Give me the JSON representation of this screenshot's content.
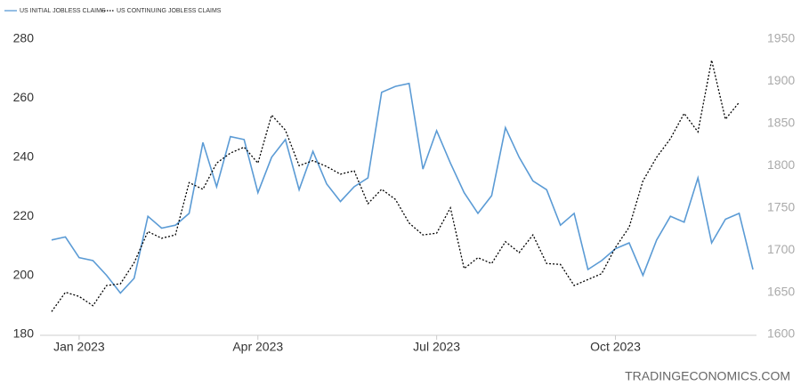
{
  "chart_data": {
    "type": "line",
    "categories": [
      null,
      null,
      "Jan 2023",
      null,
      null,
      null,
      null,
      null,
      null,
      null,
      null,
      null,
      null,
      null,
      null,
      "Apr 2023",
      null,
      null,
      null,
      null,
      null,
      null,
      null,
      null,
      null,
      null,
      null,
      null,
      "Jul 2023",
      null,
      null,
      null,
      null,
      null,
      null,
      null,
      null,
      null,
      null,
      null,
      null,
      "Oct 2023",
      null,
      null,
      null,
      null,
      null,
      null,
      null,
      null,
      null,
      null
    ],
    "series": [
      {
        "name": "US INITIAL JOBLESS CLAIMS",
        "color": "#5b9bd5",
        "axis": "y",
        "values": [
          212,
          213,
          206,
          205,
          200,
          194,
          199,
          220,
          216,
          217,
          221,
          245,
          230,
          247,
          246,
          228,
          240,
          246,
          229,
          242,
          231,
          225,
          230,
          233,
          262,
          264,
          265,
          236,
          249,
          238,
          228,
          221,
          227,
          250,
          240,
          232,
          229,
          217,
          221,
          202,
          205,
          209,
          211,
          200,
          212,
          220,
          218,
          233,
          211,
          219,
          221,
          202
        ]
      },
      {
        "name": "US CONTINUING JOBLESS CLAIMS",
        "color": "#000000",
        "axis": "y2",
        "values": [
          1627,
          1650,
          1645,
          1634,
          1658,
          1660,
          1685,
          1722,
          1714,
          1718,
          1780,
          1772,
          1803,
          1815,
          1822,
          1803,
          1860,
          1842,
          1800,
          1806,
          1799,
          1790,
          1794,
          1755,
          1772,
          1760,
          1732,
          1718,
          1720,
          1750,
          1678,
          1691,
          1684,
          1710,
          1697,
          1718,
          1684,
          1683,
          1658,
          1665,
          1672,
          1703,
          1727,
          1782,
          1810,
          1832,
          1862,
          1840,
          1925,
          1855,
          1875,
          null
        ]
      }
    ],
    "ylim": [
      180,
      280
    ],
    "yticks": [
      180,
      200,
      220,
      240,
      260,
      280
    ],
    "y2lim": [
      1600,
      1950
    ],
    "y2ticks": [
      1600,
      1650,
      1700,
      1750,
      1800,
      1850,
      1900,
      1950
    ],
    "watermark": "TRADINGECONOMICS.COM"
  }
}
